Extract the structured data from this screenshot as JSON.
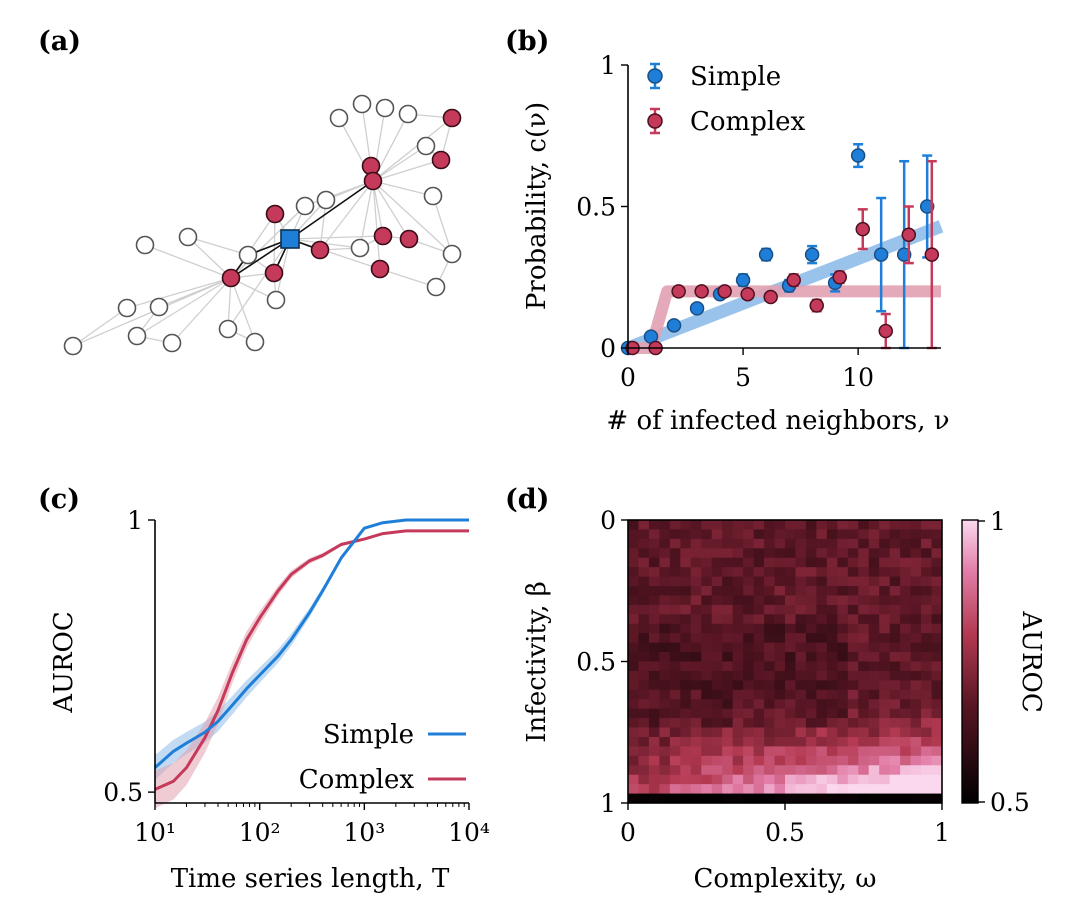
{
  "colors": {
    "simple": "#1f7fd8",
    "complex": "#c53a5a",
    "simple_fill": "#8fbde9",
    "complex_fill": "#e2a1b1",
    "edge": "#cfcfcf",
    "node_edge": "#555555"
  },
  "panels": {
    "a": {
      "label": "(a)"
    },
    "b": {
      "label": "(b)"
    },
    "c": {
      "label": "(c)"
    },
    "d": {
      "label": "(d)"
    }
  },
  "chart_data": [
    {
      "panel": "b",
      "type": "scatter",
      "xlabel": "# of infected neighbors, ν",
      "ylabel": "Probability, c(ν)",
      "xlim": [
        0,
        13.6
      ],
      "ylim": [
        0,
        1
      ],
      "xticks": [
        "0",
        "5",
        "10"
      ],
      "xtick_values": [
        0,
        5,
        10
      ],
      "yticks": [
        "0",
        "0.5",
        "1"
      ],
      "ytick_values": [
        0,
        0.5,
        1
      ],
      "legend": {
        "position": "top-left",
        "entries": [
          "Simple",
          "Complex"
        ]
      },
      "series": [
        {
          "name": "Simple",
          "x": [
            0,
            1,
            2,
            3,
            4,
            5,
            6,
            7,
            8,
            9,
            10,
            11,
            12,
            13
          ],
          "y": [
            0.0,
            0.04,
            0.08,
            0.14,
            0.19,
            0.24,
            0.33,
            0.22,
            0.33,
            0.23,
            0.68,
            0.33,
            0.33,
            0.5
          ],
          "err": [
            0.0,
            0.01,
            0.01,
            0.01,
            0.01,
            0.02,
            0.02,
            0.02,
            0.03,
            0.03,
            0.04,
            0.2,
            0.33,
            0.18
          ],
          "fit": {
            "x": [
              0,
              13.6
            ],
            "y": [
              0.0,
              0.43
            ]
          }
        },
        {
          "name": "Complex",
          "x": [
            0.2,
            1.2,
            2.2,
            3.2,
            4.2,
            5.2,
            6.2,
            7.2,
            8.2,
            9.2,
            10.2,
            11.2,
            12.2,
            13.2
          ],
          "y": [
            0.0,
            0.0,
            0.2,
            0.2,
            0.2,
            0.19,
            0.18,
            0.24,
            0.15,
            0.25,
            0.42,
            0.06,
            0.4,
            0.33
          ],
          "err": [
            0.0,
            0.0,
            0.01,
            0.01,
            0.01,
            0.01,
            0.01,
            0.02,
            0.02,
            0.02,
            0.07,
            0.06,
            0.1,
            0.33
          ],
          "fit": {
            "x": [
              0,
              1.0,
              1.7,
              13.6
            ],
            "y": [
              0.0,
              0.0,
              0.2,
              0.2
            ]
          }
        }
      ]
    },
    {
      "panel": "c",
      "type": "line",
      "xlabel": "Time series length, T",
      "ylabel": "AUROC",
      "xscale": "log",
      "xlim": [
        10,
        10000
      ],
      "ylim": [
        0.48,
        1.0
      ],
      "xticks": [
        "10¹",
        "10²",
        "10³",
        "10⁴"
      ],
      "xtick_values": [
        10,
        100,
        1000,
        10000
      ],
      "yticks": [
        "0.5",
        "1"
      ],
      "ytick_values": [
        0.5,
        1
      ],
      "legend": {
        "position": "bottom-right",
        "entries": [
          "Simple",
          "Complex"
        ]
      },
      "series": [
        {
          "name": "Simple",
          "x": [
            10,
            15,
            20,
            30,
            40,
            55,
            75,
            100,
            150,
            200,
            300,
            400,
            600,
            1000,
            1500,
            2500,
            4000,
            6000,
            10000
          ],
          "y": [
            0.545,
            0.575,
            0.59,
            0.61,
            0.63,
            0.66,
            0.69,
            0.715,
            0.75,
            0.78,
            0.83,
            0.87,
            0.93,
            0.985,
            0.995,
            1.0,
            1.0,
            1.0,
            1.0
          ],
          "band": 0.025
        },
        {
          "name": "Complex",
          "x": [
            10,
            15,
            20,
            30,
            40,
            55,
            75,
            100,
            150,
            200,
            300,
            400,
            600,
            1000,
            1500,
            2500,
            4000,
            6000,
            10000
          ],
          "y": [
            0.505,
            0.52,
            0.545,
            0.6,
            0.65,
            0.72,
            0.78,
            0.82,
            0.87,
            0.9,
            0.925,
            0.935,
            0.955,
            0.965,
            0.975,
            0.98,
            0.98,
            0.98,
            0.98
          ],
          "band": 0.035
        }
      ]
    },
    {
      "panel": "d",
      "type": "heatmap",
      "xlabel": "Complexity, ω",
      "ylabel": "Infectivity, β",
      "colorbar_label": "AUROC",
      "xlim": [
        0,
        1
      ],
      "ylim": [
        0,
        1
      ],
      "xticks": [
        "0",
        "0.5",
        "1"
      ],
      "xtick_values": [
        0,
        0.5,
        1
      ],
      "yticks": [
        "0",
        "0.5",
        "1"
      ],
      "ytick_values": [
        0,
        0.5,
        1
      ],
      "colorbar_ticks": [
        "0.5",
        "1"
      ],
      "colorbar_range": [
        0.5,
        1
      ],
      "grid": [
        30,
        30
      ],
      "description": "AUROC near 0.65-0.75 across most of the grid, rising to ~1 where infectivity is high (bottom) and complexity is large (right); the last row (β = 1) is near 0.5."
    }
  ]
}
